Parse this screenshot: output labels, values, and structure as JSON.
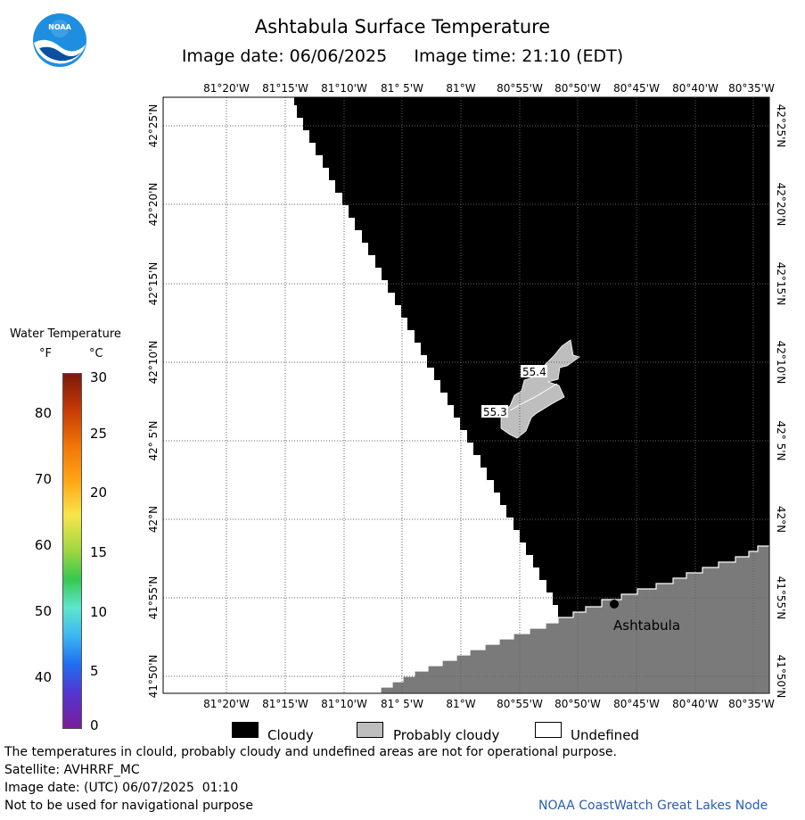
{
  "header": {
    "title": "Ashtabula Surface Temperature",
    "image_date_label": "Image date: 06/06/2025",
    "image_time_label": "Image time: 21:10 (EDT)"
  },
  "logo": {
    "text": "NOAA",
    "icon": "noaa-logo-icon"
  },
  "map": {
    "longitude_labels": [
      "81°20'W",
      "81°15'W",
      "81°10'W",
      "81° 5'W",
      "81°W",
      "80°55'W",
      "80°50'W",
      "80°45'W",
      "80°40'W",
      "80°35'W"
    ],
    "latitude_labels": [
      "42°25'N",
      "42°20'N",
      "42°15'N",
      "42°10'N",
      "42° 5'N",
      "42°N",
      "41°55'N",
      "41°50'N"
    ],
    "temperature_labels": [
      "55.4",
      "55.3"
    ],
    "city_label": "Ashtabula",
    "colors": {
      "cloudy": "#000000",
      "probably_cloudy": "#bebebe",
      "land": "#7a7a7a",
      "undefined": "#ffffff",
      "grid": "#606060"
    }
  },
  "legend": {
    "title": "Water Temperature",
    "unit_f": "°F",
    "unit_c": "°C",
    "fahrenheit_ticks": [
      "80",
      "70",
      "60",
      "50",
      "40"
    ],
    "celsius_ticks": [
      "30",
      "25",
      "20",
      "15",
      "10",
      "5",
      "0"
    ],
    "categories": [
      {
        "label": "Cloudy",
        "color": "#000000"
      },
      {
        "label": "Probably cloudy",
        "color": "#bebebe"
      },
      {
        "label": "Undefined",
        "color": "#ffffff"
      }
    ]
  },
  "footer": {
    "notice": "The temperatures in clould, probably cloudy and undefined areas are not for operational purpose.",
    "satellite": "Satellite: AVHRRF_MC",
    "utc_date": "Image date: (UTC) 06/07/2025  01:10",
    "navigation": "Not to be used for navigational purpose",
    "credit": "NOAA CoastWatch Great Lakes Node"
  }
}
